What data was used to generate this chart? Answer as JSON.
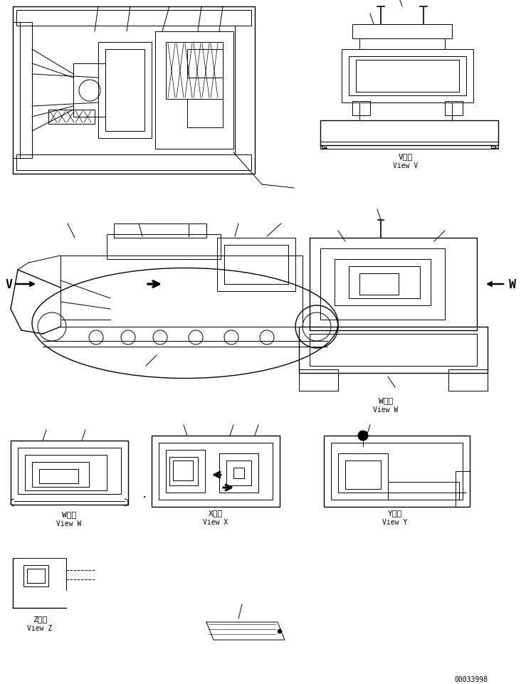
{
  "background_color": "#ffffff",
  "fig_width": 7.39,
  "fig_height": 9.62,
  "dpi": 100,
  "part_number": "00033998",
  "view_V_label_jp": "V　視",
  "view_V_label_en": "View V",
  "view_W_label_jp": "W　視",
  "view_W_label_en": "View W",
  "view_X_label_jp": "X　視",
  "view_X_label_en": "View X",
  "view_Y_label_jp": "Y　視",
  "view_Y_label_en": "View Y",
  "view_Z_label_jp": "Z　視",
  "view_Z_label_en": "View Z",
  "arrow_V_label": "V",
  "arrow_W_label": "W"
}
